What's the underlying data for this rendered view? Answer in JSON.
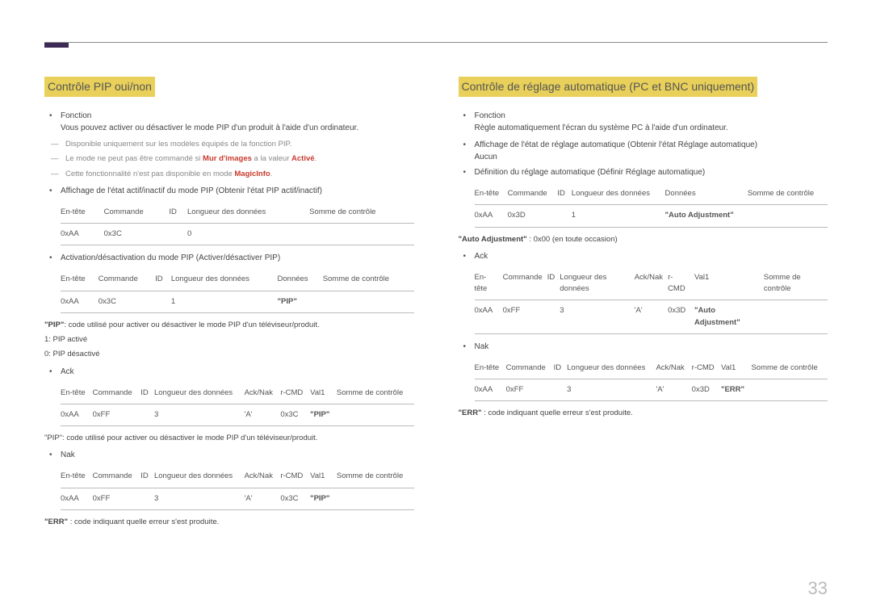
{
  "pageNumber": "33",
  "colors": {
    "highlight_bg": "#e8d05a",
    "top_marker": "#3d2b56",
    "red_text": "#c93a2e",
    "body_text": "#444444",
    "muted_text": "#888888",
    "border": "#bbbbbb"
  },
  "left": {
    "title": "Contrôle PIP oui/non",
    "fonction_label": "Fonction",
    "fonction_desc": "Vous pouvez activer ou désactiver le mode PIP d'un produit à l'aide d'un ordinateur.",
    "dash1_a": "Disponible uniquement sur les modèles équipés de la fonction PIP.",
    "dash2_a": "Le mode ne peut pas être commandé si ",
    "dash2_b": "Mur d'images",
    "dash2_c": " a la valeur ",
    "dash2_d": "Activé",
    "dash2_e": ".",
    "dash3_a": "Cette fonctionnalité n'est pas disponible en mode ",
    "dash3_b": "MagicInfo",
    "dash3_c": ".",
    "bullet_affichage": "Affichage de l'état actif/inactif du mode PIP (Obtenir l'état PIP actif/inactif)",
    "t1": {
      "h": [
        "En-tête",
        "Commande",
        "ID",
        "Longueur des données",
        "Somme de contrôle"
      ],
      "r": [
        "0xAA",
        "0x3C",
        "",
        "0",
        ""
      ]
    },
    "bullet_activation": "Activation/désactivation du mode PIP (Activer/désactiver PIP)",
    "t2": {
      "h": [
        "En-tête",
        "Commande",
        "ID",
        "Longueur des données",
        "Données",
        "Somme de contrôle"
      ],
      "r": [
        "0xAA",
        "0x3C",
        "",
        "1",
        "\"PIP\"",
        ""
      ]
    },
    "pip_desc": "\"PIP\": code utilisé pour activer ou désactiver le mode PIP d'un téléviseur/produit.",
    "pip_1": "1: PIP activé",
    "pip_0": "0: PIP désactivé",
    "ack_label": "Ack",
    "t3": {
      "h": [
        "En-tête",
        "Commande",
        "ID",
        "Longueur des données",
        "Ack/Nak",
        "r-CMD",
        "Val1",
        "Somme de contrôle"
      ],
      "r": [
        "0xAA",
        "0xFF",
        "",
        "3",
        "'A'",
        "0x3C",
        "\"PIP\"",
        ""
      ]
    },
    "pip_desc2": "\"PIP\": code utilisé pour activer ou désactiver le mode PIP d'un téléviseur/produit.",
    "nak_label": "Nak",
    "t4": {
      "h": [
        "En-tête",
        "Commande",
        "ID",
        "Longueur des données",
        "Ack/Nak",
        "r-CMD",
        "Val1",
        "Somme de contrôle"
      ],
      "r": [
        "0xAA",
        "0xFF",
        "",
        "3",
        "'A'",
        "0x3C",
        "\"PIP\"",
        ""
      ]
    },
    "err_desc": "\"ERR\" : code indiquant quelle erreur s'est produite."
  },
  "right": {
    "title": "Contrôle de réglage automatique (PC et BNC uniquement)",
    "fonction_label": "Fonction",
    "fonction_desc": "Règle automatiquement l'écran du système PC à l'aide d'un ordinateur.",
    "bullet_affichage": "Affichage de l'état de réglage automatique (Obtenir l'état Réglage automatique)",
    "aucun": "Aucun",
    "bullet_definition": "Définition du réglage automatique (Définir Réglage automatique)",
    "t1": {
      "h": [
        "En-tête",
        "Commande",
        "ID",
        "Longueur des données",
        "Données",
        "Somme de contrôle"
      ],
      "r": [
        "0xAA",
        "0x3D",
        "",
        "1",
        "\"Auto Adjustment\"",
        ""
      ]
    },
    "auto_desc": "\"Auto Adjustment\" : 0x00 (en toute occasion)",
    "ack_label": "Ack",
    "t2": {
      "h": [
        "En-tête",
        "Commande",
        "ID",
        "Longueur des données",
        "Ack/Nak",
        "r-CMD",
        "Val1",
        "Somme de contrôle"
      ],
      "r": [
        "0xAA",
        "0xFF",
        "",
        "3",
        "'A'",
        "0x3D",
        "\"Auto Adjustment\"",
        ""
      ]
    },
    "nak_label": "Nak",
    "t3": {
      "h": [
        "En-tête",
        "Commande",
        "ID",
        "Longueur des données",
        "Ack/Nak",
        "r-CMD",
        "Val1",
        "Somme de contrôle"
      ],
      "r": [
        "0xAA",
        "0xFF",
        "",
        "3",
        "'A'",
        "0x3D",
        "\"ERR\"",
        ""
      ]
    },
    "err_desc": "\"ERR\" : code indiquant quelle erreur s'est produite."
  }
}
